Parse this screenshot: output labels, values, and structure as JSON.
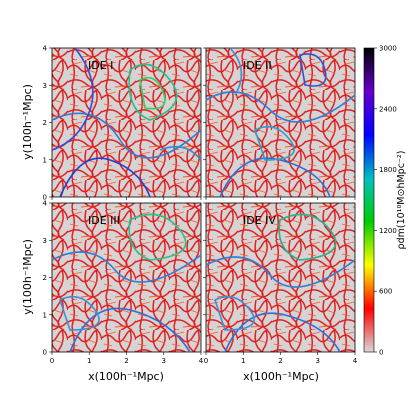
{
  "chart_data": [
    {
      "type": "heatmap",
      "panel": "IDE I",
      "xlabel": "",
      "ylabel": "y(100h⁻¹Mpc)",
      "xlim": [
        0,
        4
      ],
      "ylim": [
        0,
        4
      ],
      "xticks": [],
      "yticks": [
        "0",
        "1",
        "2",
        "3",
        "4"
      ]
    },
    {
      "type": "heatmap",
      "panel": "IDE II",
      "xlabel": "",
      "ylabel": "",
      "xlim": [
        0,
        4
      ],
      "ylim": [
        0,
        4
      ],
      "xticks": [],
      "yticks": []
    },
    {
      "type": "heatmap",
      "panel": "IDE III",
      "xlabel": "x(100h⁻¹Mpc)",
      "ylabel": "y(100h⁻¹Mpc)",
      "xlim": [
        0,
        4
      ],
      "ylim": [
        0,
        4
      ],
      "xticks": [
        "0",
        "1",
        "2",
        "3",
        "4"
      ],
      "yticks": [
        "0",
        "1",
        "2",
        "3",
        "4"
      ]
    },
    {
      "type": "heatmap",
      "panel": "IDE IV",
      "xlabel": "x(100h⁻¹Mpc)",
      "ylabel": "",
      "xlim": [
        0,
        4
      ],
      "ylim": [
        0,
        4
      ],
      "xticks": [
        "0",
        "1",
        "2",
        "3",
        "4"
      ],
      "yticks": []
    }
  ],
  "colorbar": {
    "label": "ρdm(10¹⁰M⊙hMpc⁻²)",
    "range": [
      0,
      3000
    ],
    "ticks": [
      "0",
      "600",
      "1200",
      "1800",
      "2400",
      "3000"
    ],
    "colors": [
      "#d8d8d8",
      "#ff0000",
      "#ffff00",
      "#00cc00",
      "#00c0c0",
      "#0000ff",
      "#6600cc",
      "#000000"
    ]
  }
}
